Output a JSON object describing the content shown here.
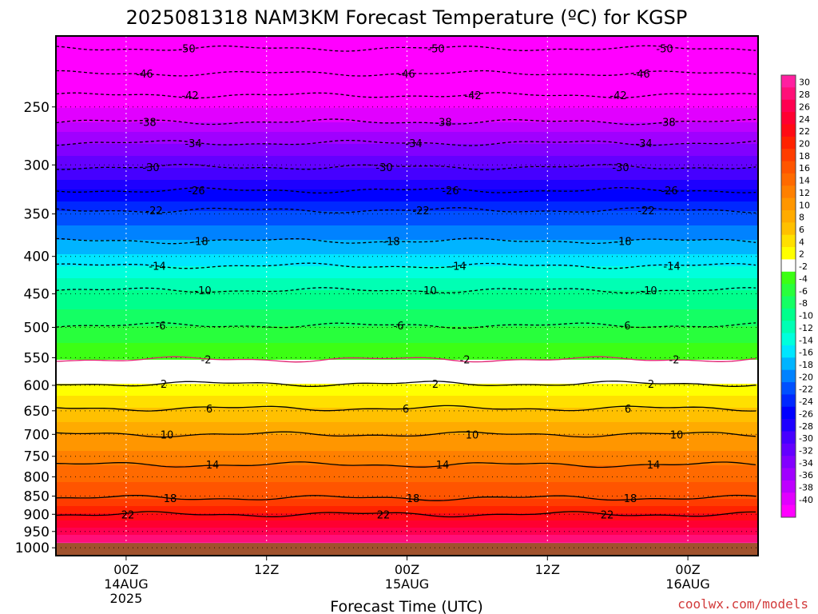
{
  "chart_data": {
    "type": "heatmap",
    "title": "2025081318 NAM3KM Forecast Temperature (ºC) for KGSP",
    "xlabel": "Forecast Time (UTC)",
    "ylabel": "",
    "y_scale": "log-pressure",
    "y_ticks": [
      250,
      300,
      350,
      400,
      450,
      500,
      550,
      600,
      650,
      700,
      750,
      800,
      850,
      900,
      950,
      1000
    ],
    "y_range_hpa": [
      200,
      1025
    ],
    "x_range_hours": [
      -6,
      54
    ],
    "x_ticks": [
      {
        "hours": 0,
        "label": "00Z",
        "sub": "14AUG",
        "sub2": "2025"
      },
      {
        "hours": 12,
        "label": "12Z",
        "sub": "",
        "sub2": ""
      },
      {
        "hours": 24,
        "label": "00Z",
        "sub": "15AUG",
        "sub2": ""
      },
      {
        "hours": 36,
        "label": "12Z",
        "sub": "",
        "sub2": ""
      },
      {
        "hours": 48,
        "label": "00Z",
        "sub": "16AUG",
        "sub2": ""
      }
    ],
    "ground_pressure_hpa": 985,
    "colorbar": {
      "labels": [
        30,
        28,
        26,
        24,
        22,
        20,
        18,
        16,
        14,
        12,
        10,
        8,
        6,
        4,
        2,
        -2,
        -4,
        -6,
        -8,
        -10,
        -12,
        -14,
        -16,
        -18,
        -20,
        -22,
        -24,
        -26,
        -28,
        -30,
        -32,
        -34,
        -36,
        -38,
        -40
      ],
      "colors": [
        "#ff1fa0",
        "#ff0f78",
        "#ff0050",
        "#ff0030",
        "#ff0a14",
        "#ff2200",
        "#ff3c00",
        "#ff5500",
        "#ff6a00",
        "#ff8000",
        "#ff9600",
        "#ffab00",
        "#ffc000",
        "#ffe000",
        "#ffff00",
        "#ffffff",
        "#3cff14",
        "#28ff3c",
        "#14ff64",
        "#00ff8c",
        "#00ffb4",
        "#00ffdc",
        "#00e6ff",
        "#00b4ff",
        "#0082ff",
        "#0050ff",
        "#0028ff",
        "#0000ff",
        "#1e00ff",
        "#4600ff",
        "#6400ff",
        "#8200ff",
        "#a000ff",
        "#be00ff",
        "#e100ff",
        "#ff00ff"
      ]
    },
    "isotherms": [
      {
        "value": 22,
        "pressure_hpa": 900
      },
      {
        "value": 18,
        "pressure_hpa": 855
      },
      {
        "value": 14,
        "pressure_hpa": 770
      },
      {
        "value": 10,
        "pressure_hpa": 700
      },
      {
        "value": 6,
        "pressure_hpa": 645
      },
      {
        "value": 2,
        "pressure_hpa": 597
      },
      {
        "value": -2,
        "pressure_hpa": 553
      },
      {
        "value": -6,
        "pressure_hpa": 497
      },
      {
        "value": -10,
        "pressure_hpa": 445
      },
      {
        "value": -14,
        "pressure_hpa": 412
      },
      {
        "value": -18,
        "pressure_hpa": 381
      },
      {
        "value": -22,
        "pressure_hpa": 346
      },
      {
        "value": -26,
        "pressure_hpa": 325
      },
      {
        "value": -30,
        "pressure_hpa": 302
      },
      {
        "value": -34,
        "pressure_hpa": 280
      },
      {
        "value": -38,
        "pressure_hpa": 262
      },
      {
        "value": -42,
        "pressure_hpa": 241
      },
      {
        "value": -46,
        "pressure_hpa": 225
      },
      {
        "value": -50,
        "pressure_hpa": 208
      }
    ],
    "grid": true
  },
  "credit": "coolwx.com/models"
}
